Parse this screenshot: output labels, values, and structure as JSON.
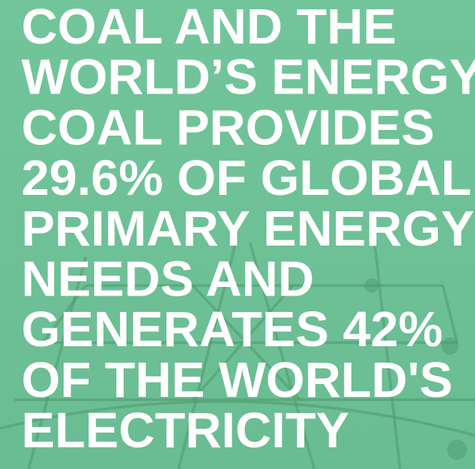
{
  "headline": {
    "lines": [
      "COAL AND THE",
      "WORLD’S ENERGY:",
      "COAL PROVIDES",
      "29.6% OF GLOBAL",
      "PRIMARY ENERGY",
      "NEEDS AND",
      "GENERATES 42%",
      "OF THE WORLD'S",
      "ELECTRICITY"
    ]
  }
}
